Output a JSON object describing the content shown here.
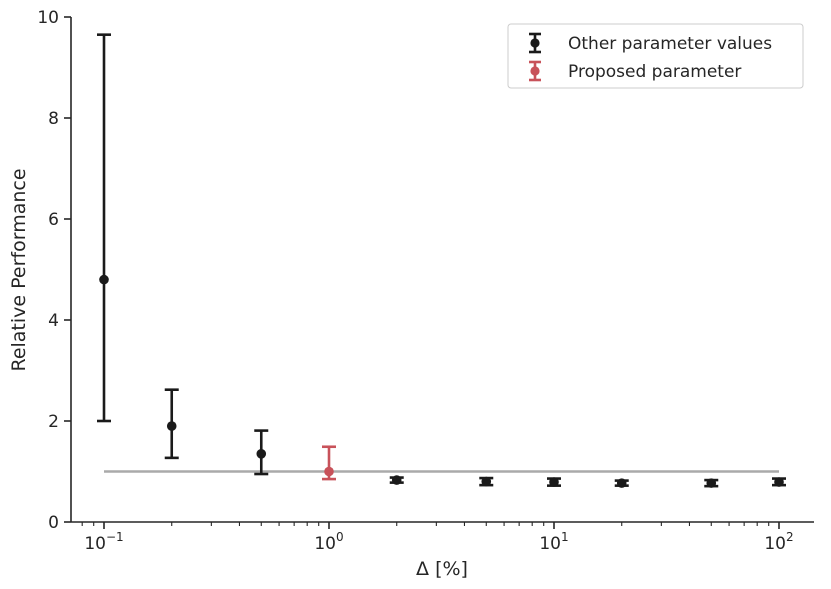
{
  "chart_data": {
    "type": "scatter",
    "xlabel": "Δ [%]",
    "ylabel": "Relative Performance",
    "xscale": "log",
    "xlim": [
      0.07,
      150
    ],
    "ylim": [
      0,
      10
    ],
    "yticks": [
      0,
      2,
      4,
      6,
      8,
      10
    ],
    "xticks": [
      {
        "value": 0.1,
        "base": "10",
        "exp": "−1"
      },
      {
        "value": 1,
        "base": "10",
        "exp": "0"
      },
      {
        "value": 10,
        "base": "10",
        "exp": "1"
      },
      {
        "value": 100,
        "base": "10",
        "exp": "2"
      }
    ],
    "grid": false,
    "legend_position": "top-right",
    "reference_line": {
      "y": 1.0,
      "x_from": 0.1,
      "x_to": 100,
      "color": "#aaaaaa"
    },
    "series": [
      {
        "name": "Other parameter values",
        "color": "#1a1a1a",
        "points": [
          {
            "x": 0.1,
            "y": 4.8,
            "lower": 2.0,
            "upper": 9.65
          },
          {
            "x": 0.2,
            "y": 1.9,
            "lower": 1.27,
            "upper": 2.62
          },
          {
            "x": 0.5,
            "y": 1.35,
            "lower": 0.95,
            "upper": 1.81
          },
          {
            "x": 2,
            "y": 0.83,
            "lower": 0.78,
            "upper": 0.88
          },
          {
            "x": 5,
            "y": 0.8,
            "lower": 0.73,
            "upper": 0.87
          },
          {
            "x": 10,
            "y": 0.79,
            "lower": 0.72,
            "upper": 0.86
          },
          {
            "x": 20,
            "y": 0.77,
            "lower": 0.72,
            "upper": 0.82
          },
          {
            "x": 50,
            "y": 0.77,
            "lower": 0.71,
            "upper": 0.83
          },
          {
            "x": 100,
            "y": 0.79,
            "lower": 0.73,
            "upper": 0.86
          }
        ]
      },
      {
        "name": "Proposed parameter",
        "color": "#c8525a",
        "points": [
          {
            "x": 1,
            "y": 1.0,
            "lower": 0.85,
            "upper": 1.49
          }
        ]
      }
    ]
  }
}
